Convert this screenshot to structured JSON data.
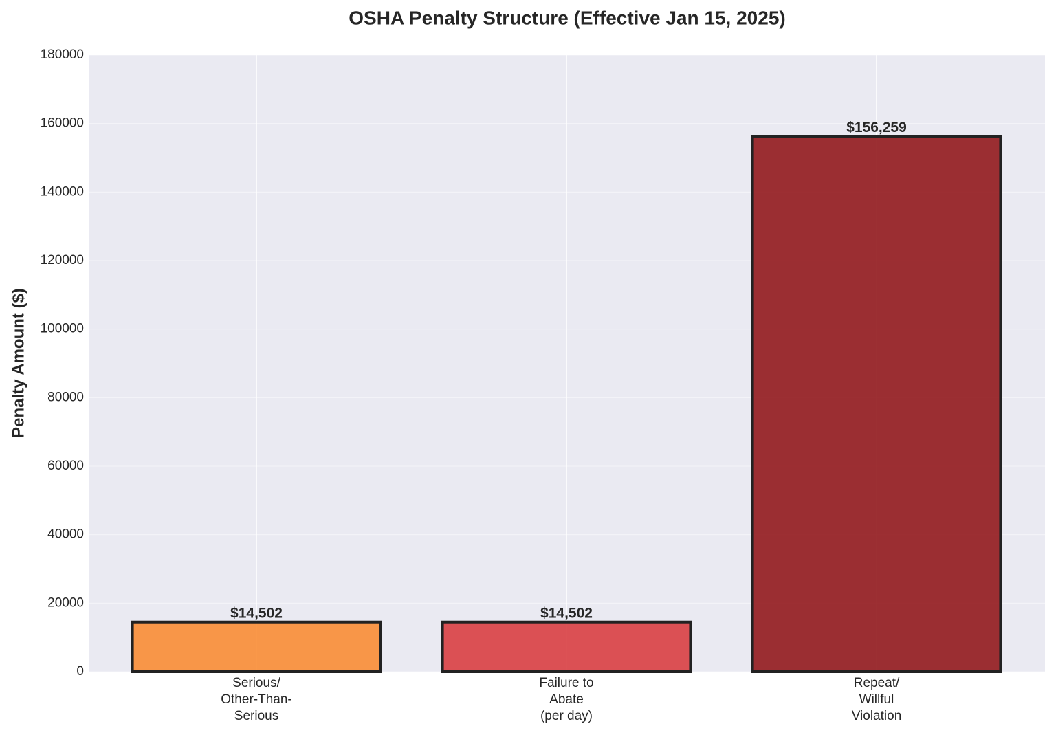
{
  "chart_data": {
    "type": "bar",
    "title": "OSHA Penalty Structure (Effective Jan 15, 2025)",
    "y_label": "Penalty Amount ($)",
    "categories": [
      "Serious/\nOther-Than-\nSerious",
      "Failure to\nAbate\n(per day)",
      "Repeat/\nWillful\nViolation"
    ],
    "values": [
      14502,
      14502,
      156259
    ],
    "value_labels": [
      "$14,502",
      "$14,502",
      "$156,259"
    ],
    "colors": [
      "#f98d35",
      "#d93f42",
      "#921a1d"
    ],
    "ylim": [
      0,
      180000
    ],
    "yticks": [
      0,
      20000,
      40000,
      60000,
      80000,
      100000,
      120000,
      140000,
      160000,
      180000
    ],
    "grid": true
  }
}
